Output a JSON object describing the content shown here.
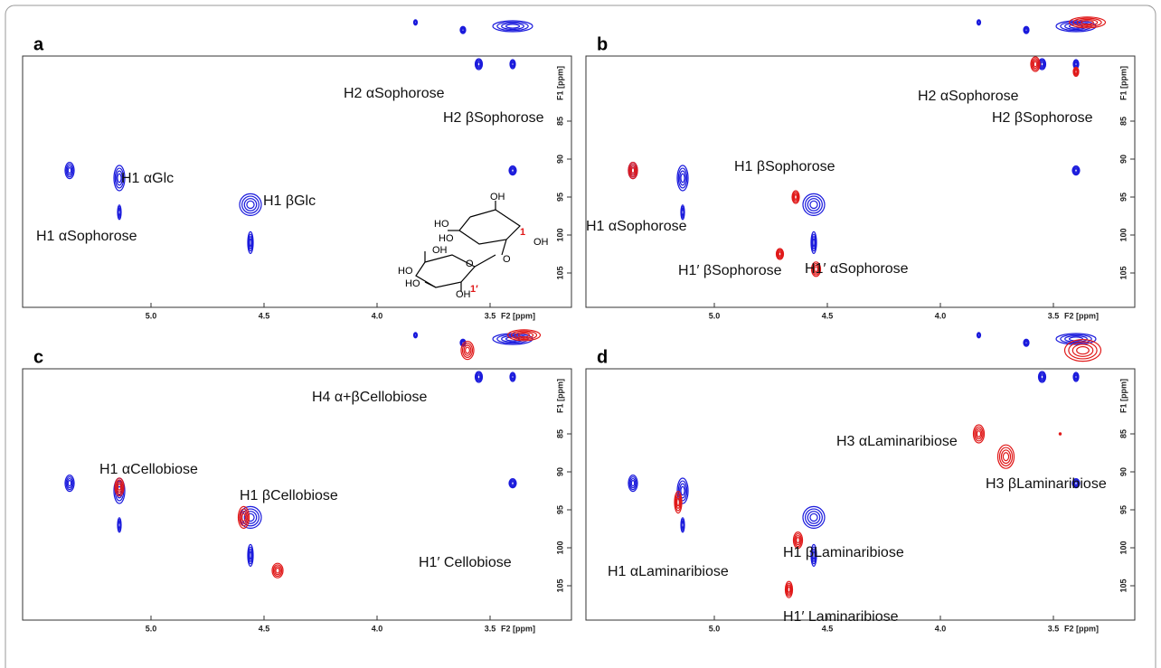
{
  "panels": [
    {
      "letter": "a",
      "xticks": [
        "5.0",
        "4.5",
        "4.0",
        "3.5"
      ],
      "xaxis": "F2 [ppm]",
      "yaxis": "F1 [ppm]",
      "yticks": [
        "85",
        "90",
        "95",
        "100",
        "105"
      ],
      "annotations": [
        "H2 αSophorose",
        "H2 βSophorose",
        "H1 αGlc",
        "H1 βGlc",
        "H1 αSophorose"
      ],
      "structure": [
        "OH",
        "HO",
        "HO",
        "OH",
        "1",
        "O",
        "OH",
        "HO",
        "HO",
        "O",
        "OH",
        "1′"
      ]
    },
    {
      "letter": "b",
      "xticks": [
        "5.0",
        "4.5",
        "4.0",
        "3.5"
      ],
      "xaxis": "F2 [ppm]",
      "yaxis": "F1 [ppm]",
      "yticks": [
        "85",
        "90",
        "95",
        "100",
        "105"
      ],
      "annotations": [
        "H2 αSophorose",
        "H2 βSophorose",
        "H1 βSophorose",
        "H1 αSophorose",
        "H1′ βSophorose",
        "H1′ αSophorose"
      ]
    },
    {
      "letter": "c",
      "xticks": [
        "5.0",
        "4.5",
        "4.0",
        "3.5"
      ],
      "xaxis": "F2 [ppm]",
      "yaxis": "F1 [ppm]",
      "yticks": [
        "85",
        "90",
        "95",
        "100",
        "105"
      ],
      "annotations": [
        "H4 α+βCellobiose",
        "H1 αCellobiose",
        "H1 βCellobiose",
        "H1′ Cellobiose"
      ]
    },
    {
      "letter": "d",
      "xticks": [
        "5.0",
        "4.5",
        "4.0",
        "3.5"
      ],
      "xaxis": "F2 [ppm]",
      "yaxis": "F1 [ppm]",
      "yticks": [
        "85",
        "90",
        "95",
        "100",
        "105"
      ],
      "annotations": [
        "H3 αLaminaribiose",
        "H3 βLaminaribiose",
        "H1 αLaminaribiose",
        "H1 βLaminaribiose",
        "H1′ Laminaribiose"
      ]
    }
  ]
}
